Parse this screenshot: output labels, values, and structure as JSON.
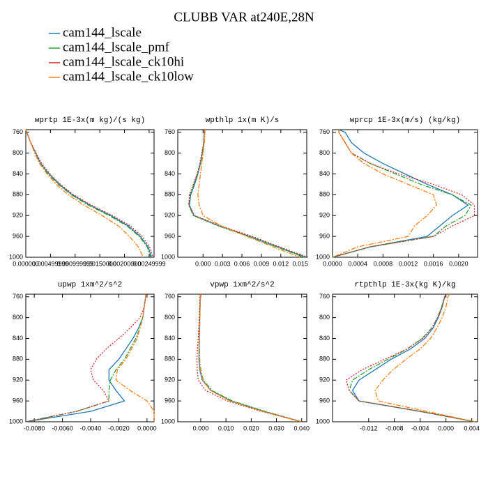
{
  "title": "CLUBB VAR at240E,28N",
  "legend": [
    {
      "name": "cam144_lscale",
      "color": "#1f77b4"
    },
    {
      "name": "cam144_lscale_pmf",
      "color": "#2ca02c"
    },
    {
      "name": "cam144_lscale_ck10hi",
      "color": "#d62728"
    },
    {
      "name": "cam144_lscale_ck10low",
      "color": "#ff7f0e"
    }
  ],
  "chart_data": [
    {
      "type": "line",
      "title": "wprtp  1E-3x(m kg)/(s kg)",
      "y": [
        755,
        760,
        780,
        800,
        820,
        840,
        860,
        880,
        900,
        920,
        940,
        960,
        980,
        1000
      ],
      "xlim": [
        0,
        0.0026
      ],
      "ylim": [
        1000,
        755
      ],
      "xticks": [
        {
          "value": 0,
          "label": "0.000000"
        },
        {
          "value": 0.0005,
          "label": "0.000499999"
        },
        {
          "value": 0.001,
          "label": "0.000999999"
        },
        {
          "value": 0.0015,
          "label": "0.00150000"
        },
        {
          "value": 0.002,
          "label": "0.00200000"
        },
        {
          "value": 0.0025,
          "label": "0.00249999"
        }
      ],
      "yticks": [
        760,
        800,
        840,
        880,
        920,
        960,
        1000
      ],
      "series": [
        {
          "values": [
            0,
            2e-05,
            0.0001,
            0.0002,
            0.0003,
            0.00047,
            0.00068,
            0.00094,
            0.0013,
            0.00172,
            0.00208,
            0.00232,
            0.00248,
            0.00255
          ]
        },
        {
          "values": [
            0,
            2e-05,
            0.0001,
            0.00019,
            0.00029,
            0.00045,
            0.00066,
            0.00092,
            0.00127,
            0.00169,
            0.00205,
            0.0023,
            0.00246,
            0.00253
          ]
        },
        {
          "values": [
            0,
            2e-05,
            0.0001,
            0.00021,
            0.00032,
            0.00049,
            0.0007,
            0.00097,
            0.00133,
            0.00176,
            0.00212,
            0.00236,
            0.00251,
            0.00258
          ]
        },
        {
          "values": [
            0,
            2e-05,
            0.0001,
            0.00018,
            0.00028,
            0.00043,
            0.00062,
            0.00086,
            0.00118,
            0.00155,
            0.00188,
            0.0021,
            0.00228,
            0.00238
          ]
        }
      ]
    },
    {
      "type": "line",
      "title": "wpthlp  1x(m K)/s",
      "y": [
        755,
        760,
        780,
        800,
        820,
        840,
        860,
        880,
        900,
        920,
        940,
        960,
        980,
        1000
      ],
      "xlim": [
        -0.0039,
        0.016
      ],
      "ylim": [
        1000,
        755
      ],
      "xticks": [
        {
          "value": 0,
          "label": "0.000"
        },
        {
          "value": 0.003,
          "label": "0.003"
        },
        {
          "value": 0.006,
          "label": "0.006"
        },
        {
          "value": 0.009,
          "label": "0.009"
        },
        {
          "value": 0.012,
          "label": "0.012"
        },
        {
          "value": 0.015,
          "label": "0.015"
        }
      ],
      "yticks": [
        760,
        800,
        840,
        880,
        920,
        960,
        1000
      ],
      "series": [
        {
          "values": [
            0.0002,
            0.0002,
            0.0001,
            -0.0001,
            -0.0004,
            -0.0008,
            -0.0013,
            -0.0019,
            -0.0021,
            -0.0014,
            0.0025,
            0.0072,
            0.0115,
            0.0158
          ]
        },
        {
          "values": [
            0.0002,
            0.0002,
            0.0001,
            -0.0001,
            -0.0004,
            -0.0009,
            -0.0014,
            -0.002,
            -0.0022,
            -0.0015,
            0.0024,
            0.007,
            0.0113,
            0.0156
          ]
        },
        {
          "values": [
            0.0002,
            0.0002,
            0.0001,
            -0.0002,
            -0.0005,
            -0.0009,
            -0.0015,
            -0.0021,
            -0.0022,
            -0.0013,
            0.0028,
            0.0076,
            0.0118,
            0.0162
          ]
        },
        {
          "values": [
            0.0003,
            0.0003,
            0.0002,
            0,
            -0.0002,
            -0.0004,
            -0.0006,
            -0.0008,
            -0.0006,
            0,
            0.0028,
            0.0068,
            0.0108,
            0.015
          ]
        }
      ]
    },
    {
      "type": "line",
      "title": "wprcp  1E-3x(m/s) (kg/kg)",
      "y": [
        755,
        760,
        780,
        800,
        820,
        840,
        860,
        880,
        900,
        920,
        940,
        960,
        980,
        1000
      ],
      "xlim": [
        0,
        0.0023
      ],
      "ylim": [
        1000,
        755
      ],
      "xticks": [
        {
          "value": 0,
          "label": "0.0000"
        },
        {
          "value": 0.0004,
          "label": "0.0004"
        },
        {
          "value": 0.0008,
          "label": "0.0008"
        },
        {
          "value": 0.0012,
          "label": "0.0012"
        },
        {
          "value": 0.0016,
          "label": "0.0016"
        },
        {
          "value": 0.002,
          "label": "0.0020"
        }
      ],
      "yticks": [
        760,
        800,
        840,
        880,
        920,
        960,
        1000
      ],
      "series": [
        {
          "values": [
            0.0001,
            0.0002,
            0.0003,
            0.0005,
            0.0008,
            0.00115,
            0.0015,
            0.0019,
            0.00215,
            0.0019,
            0.0017,
            0.0015,
            0.0006,
            0
          ]
        },
        {
          "values": [
            0.0001,
            0.0001,
            0.0002,
            0.0003,
            0.0006,
            0.001,
            0.0014,
            0.0019,
            0.0022,
            0.0021,
            0.0018,
            0.0016,
            0.0006,
            0
          ]
        },
        {
          "values": [
            0.0001,
            0.0001,
            0.0002,
            0.0003,
            0.0006,
            0.00105,
            0.0016,
            0.00205,
            0.00225,
            0.00225,
            0.0019,
            0.0016,
            0.0006,
            0
          ]
        },
        {
          "values": [
            0.0001,
            0.0001,
            0.0002,
            0.0003,
            0.0005,
            0.0008,
            0.0012,
            0.0016,
            0.00165,
            0.0015,
            0.0013,
            0.0012,
            0.0004,
            0
          ]
        }
      ]
    },
    {
      "type": "line",
      "title": "upwp  1xm^2/s^2",
      "y": [
        755,
        760,
        780,
        800,
        820,
        840,
        860,
        880,
        900,
        920,
        940,
        960,
        980,
        1000
      ],
      "xlim": [
        -0.0086,
        0.0005
      ],
      "ylim": [
        1000,
        755
      ],
      "xticks": [
        {
          "value": -0.008,
          "label": "-0.0080"
        },
        {
          "value": -0.006,
          "label": "-0.0060"
        },
        {
          "value": -0.004,
          "label": "-0.0040"
        },
        {
          "value": -0.002,
          "label": "-0.0020"
        },
        {
          "value": 0,
          "label": "0.0000"
        }
      ],
      "yticks": [
        760,
        800,
        840,
        880,
        920,
        960,
        1000
      ],
      "series": [
        {
          "values": [
            -0.0001,
            -0.0001,
            -0.0002,
            -0.0003,
            -0.0006,
            -0.001,
            -0.0015,
            -0.002,
            -0.0027,
            -0.0027,
            -0.0022,
            -0.0016,
            -0.004,
            -0.0086
          ]
        },
        {
          "values": [
            -0.0001,
            -0.0001,
            -0.0002,
            -0.0003,
            -0.0005,
            -0.0008,
            -0.0012,
            -0.0016,
            -0.0022,
            -0.0026,
            -0.0027,
            -0.0027,
            -0.005,
            -0.0086
          ]
        },
        {
          "values": [
            -0.0001,
            -0.0001,
            -0.0002,
            -0.0005,
            -0.0012,
            -0.002,
            -0.0029,
            -0.0036,
            -0.004,
            -0.0038,
            -0.0031,
            -0.0027,
            -0.005,
            -0.0086
          ]
        },
        {
          "values": [
            -0.0001,
            -0.0001,
            -0.0002,
            -0.0003,
            -0.0005,
            -0.0007,
            -0.0011,
            -0.0015,
            -0.0021,
            -0.0022,
            -0.0012,
            0,
            0.0005,
            0.0005
          ]
        }
      ]
    },
    {
      "type": "line",
      "title": "vpwp  1xm^2/s^2",
      "y": [
        755,
        760,
        780,
        800,
        820,
        840,
        860,
        880,
        900,
        920,
        940,
        960,
        980,
        1000
      ],
      "xlim": [
        -0.0091,
        0.042
      ],
      "ylim": [
        1000,
        755
      ],
      "xticks": [
        {
          "value": 0,
          "label": "0.000"
        },
        {
          "value": 0.01,
          "label": "0.010"
        },
        {
          "value": 0.02,
          "label": "0.020"
        },
        {
          "value": 0.03,
          "label": "0.030"
        },
        {
          "value": 0.04,
          "label": "0.040"
        }
      ],
      "yticks": [
        760,
        800,
        840,
        880,
        920,
        960,
        1000
      ],
      "series": [
        {
          "values": [
            -0.0002,
            -0.0002,
            -0.0003,
            -0.0004,
            -0.0005,
            -0.0006,
            -0.0007,
            -0.0007,
            -0.0004,
            0.0006,
            0.004,
            0.012,
            0.025,
            0.04
          ]
        },
        {
          "values": [
            -0.0002,
            -0.0002,
            -0.0003,
            -0.0004,
            -0.0005,
            -0.0006,
            -0.0006,
            -0.0005,
            0,
            0.001,
            0.0045,
            0.0125,
            0.0255,
            0.04
          ]
        },
        {
          "values": [
            -0.0002,
            -0.0003,
            -0.0004,
            -0.0006,
            -0.0008,
            -0.001,
            -0.0013,
            -0.0015,
            -0.0014,
            -0.001,
            0.002,
            0.0105,
            0.024,
            0.04
          ]
        },
        {
          "values": [
            -0.0001,
            -0.0001,
            -0.0002,
            -0.0003,
            -0.0004,
            -0.0005,
            -0.0005,
            -0.0004,
            -0.0002,
            0.0008,
            0.004,
            0.0115,
            0.0245,
            0.04
          ]
        }
      ]
    },
    {
      "type": "line",
      "title": "rtpthlp  1E-3x(kg K)/kg",
      "y": [
        755,
        760,
        780,
        800,
        820,
        840,
        860,
        880,
        900,
        920,
        940,
        960,
        980,
        1000
      ],
      "xlim": [
        -0.0176,
        0.0049
      ],
      "ylim": [
        1000,
        755
      ],
      "xticks": [
        {
          "value": -0.012,
          "label": "-0.012"
        },
        {
          "value": -0.008,
          "label": "-0.008"
        },
        {
          "value": -0.004,
          "label": "-0.004"
        },
        {
          "value": 0,
          "label": "0.000"
        },
        {
          "value": 0.004,
          "label": "0.004"
        }
      ],
      "yticks": [
        760,
        800,
        840,
        880,
        920,
        960,
        1000
      ],
      "series": [
        {
          "values": [
            0,
            -0.0002,
            -0.0006,
            -0.0012,
            -0.002,
            -0.0033,
            -0.0055,
            -0.0085,
            -0.011,
            -0.0135,
            -0.0145,
            -0.0135,
            -0.004,
            0.0045
          ]
        },
        {
          "values": [
            0,
            -0.0002,
            -0.0007,
            -0.0013,
            -0.0022,
            -0.0037,
            -0.006,
            -0.009,
            -0.012,
            -0.0145,
            -0.015,
            -0.0135,
            -0.004,
            0.0045
          ]
        },
        {
          "values": [
            0,
            -0.0002,
            -0.0006,
            -0.0013,
            -0.0022,
            -0.0036,
            -0.006,
            -0.0095,
            -0.013,
            -0.0155,
            -0.015,
            -0.0135,
            -0.004,
            0.0045
          ]
        },
        {
          "values": [
            0.0005,
            0.0003,
            0,
            -0.0006,
            -0.0014,
            -0.0024,
            -0.004,
            -0.0062,
            -0.0082,
            -0.0098,
            -0.011,
            -0.0105,
            -0.003,
            0.0045
          ]
        }
      ]
    }
  ]
}
